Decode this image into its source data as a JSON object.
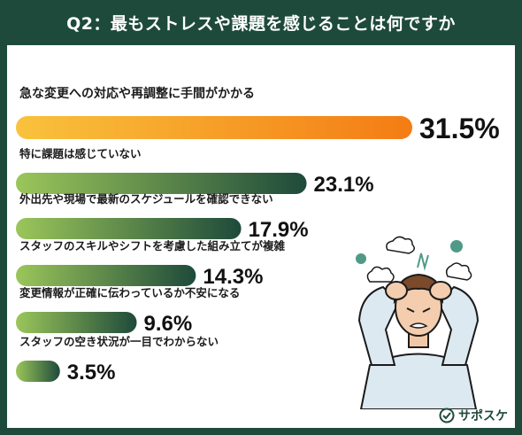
{
  "header": {
    "title": "Q2：最もストレスや課題を感じることは何ですか"
  },
  "chart_data": {
    "type": "bar",
    "orientation": "horizontal",
    "categories": [
      "急な変更への対応や再調整に手間がかかる",
      "特に課題は感じていない",
      "外出先や現場で最新のスケジュールを確認できない",
      "スタッフのスキルやシフトを考慮した組み立てが複雑",
      "変更情報が正確に伝わっているか不安になる",
      "スタッフの空き状況が一目でわからない"
    ],
    "values": [
      31.5,
      23.1,
      17.9,
      14.3,
      9.6,
      3.5
    ],
    "value_labels": [
      "31.5%",
      "23.1%",
      "17.9%",
      "14.3%",
      "9.6%",
      "3.5%"
    ],
    "unit": "%",
    "highlight_index": 0,
    "colors": {
      "highlight_start": "#f9c23c",
      "highlight_end": "#f47c14",
      "bar_start": "#9bc65a",
      "bar_end": "#1e4a3b"
    },
    "grid": false,
    "legend": "none"
  },
  "logo": {
    "text": "サポスケ",
    "icon": "clock-check-icon"
  },
  "illustration": {
    "icon": "stressed-person-icon"
  },
  "colors": {
    "header_bg": "#1e4a3b",
    "border": "#1e4a3b"
  }
}
